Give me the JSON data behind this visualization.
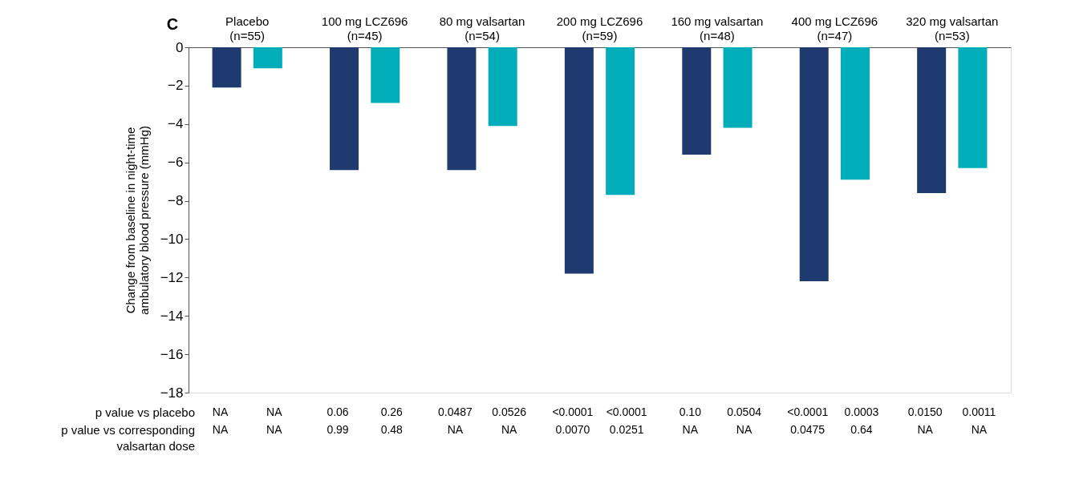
{
  "chart_data": {
    "type": "bar",
    "title": "C",
    "ylabel": "Change from baseline in night-time ambulatory blood pressure (mmHg)",
    "categories": [
      "Placebo\n(n=55)",
      "100 mg LCZ696\n(n=45)",
      "80 mg valsartan\n(n=54)",
      "200 mg LCZ696\n(n=59)",
      "160 mg valsartan\n(n=48)",
      "400 mg LCZ696\n(n=47)",
      "320 mg valsartan\n(n=53)"
    ],
    "series": [
      {
        "color": "#1f3a6e",
        "values": [
          -2.1,
          -6.4,
          -6.4,
          -11.8,
          -5.6,
          -12.2,
          -7.6
        ]
      },
      {
        "color": "#00adb9",
        "values": [
          -1.1,
          -2.9,
          -4.1,
          -7.7,
          -4.2,
          -6.9,
          -6.3
        ]
      }
    ],
    "ylim": [
      -18,
      0
    ],
    "yticks": [
      -18,
      -16,
      -14,
      -12,
      -10,
      -8,
      -6,
      -4,
      -2,
      0
    ],
    "annotations": [
      "p value vs placebo",
      "p value vs corresponding valsartan dose",
      "NA",
      "NA",
      "0.06",
      "0.26",
      "0.0487",
      "0.0526",
      "<0.0001",
      "<0.0001",
      "0.10",
      "0.0504",
      "<0.0001",
      "0.0003",
      "0.0150",
      "0.0011",
      "NA",
      "NA",
      "0.99",
      "0.48",
      "NA",
      "NA",
      "0.0070",
      "0.0251",
      "NA",
      "NA",
      "0.0475",
      "0.64",
      "NA",
      "NA"
    ]
  }
}
